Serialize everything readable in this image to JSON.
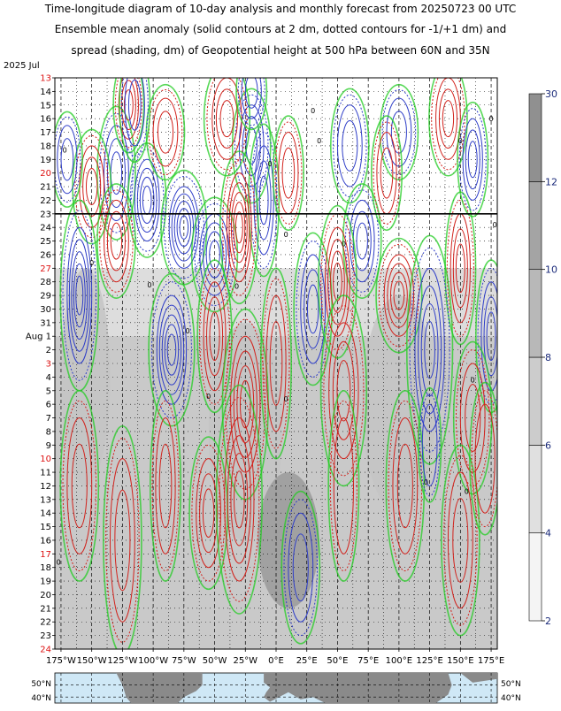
{
  "title_lines": [
    "Time-longitude diagram of 10-day analysis and monthly forecast from 20250723 00 UTC",
    "Ensemble mean anomaly (solid contours at 2 dm, dotted contours for -1/+1 dm) and",
    "spread (shading, dm) of Geopotential height at 500 hPa between 60N and 35N"
  ],
  "colors": {
    "positive": "#d2231d",
    "negative": "#2f3ec8",
    "zero": "#22cc22",
    "weekend_label": "#dd1111",
    "spread_light": "#dddddd",
    "spread_mid": "#c4c4c4",
    "spread_dark": "#9a9a9a",
    "ocean": "#cfe8f6",
    "land": "#8a8a8a",
    "analysis_line": "#000000"
  },
  "chart_data": {
    "type": "heatmap",
    "year_month_label": "2025 Jul",
    "analysis_date_label": "23",
    "y_ticks": [
      {
        "label": "13",
        "red": true
      },
      {
        "label": "14",
        "red": false
      },
      {
        "label": "15",
        "red": false
      },
      {
        "label": "16",
        "red": false
      },
      {
        "label": "17",
        "red": false
      },
      {
        "label": "18",
        "red": false
      },
      {
        "label": "19",
        "red": false
      },
      {
        "label": "20",
        "red": true
      },
      {
        "label": "21",
        "red": false
      },
      {
        "label": "22",
        "red": false
      },
      {
        "label": "23",
        "red": false
      },
      {
        "label": "24",
        "red": false
      },
      {
        "label": "25",
        "red": false
      },
      {
        "label": "26",
        "red": false
      },
      {
        "label": "27",
        "red": true
      },
      {
        "label": "28",
        "red": false
      },
      {
        "label": "29",
        "red": false
      },
      {
        "label": "30",
        "red": false
      },
      {
        "label": "31",
        "red": false
      },
      {
        "label": "Aug  1",
        "red": false
      },
      {
        "label": "2",
        "red": false
      },
      {
        "label": "3",
        "red": true
      },
      {
        "label": "4",
        "red": false
      },
      {
        "label": "5",
        "red": false
      },
      {
        "label": "6",
        "red": false
      },
      {
        "label": "7",
        "red": false
      },
      {
        "label": "8",
        "red": false
      },
      {
        "label": "9",
        "red": false
      },
      {
        "label": "10",
        "red": true
      },
      {
        "label": "11",
        "red": false
      },
      {
        "label": "12",
        "red": false
      },
      {
        "label": "13",
        "red": false
      },
      {
        "label": "14",
        "red": false
      },
      {
        "label": "15",
        "red": false
      },
      {
        "label": "16",
        "red": false
      },
      {
        "label": "17",
        "red": true
      },
      {
        "label": "18",
        "red": false
      },
      {
        "label": "19",
        "red": false
      },
      {
        "label": "20",
        "red": false
      },
      {
        "label": "21",
        "red": false
      },
      {
        "label": "22",
        "red": false
      },
      {
        "label": "23",
        "red": false
      },
      {
        "label": "24",
        "red": true
      }
    ],
    "x_ticks": [
      "175°W",
      "150°W",
      "125°W",
      "100°W",
      "75°W",
      "50°W",
      "25°W",
      "0°E",
      "25°E",
      "50°E",
      "75°E",
      "100°E",
      "125°E",
      "150°E",
      "175°E"
    ],
    "x_ticks_lon": [
      -175,
      -150,
      -125,
      -100,
      -75,
      -50,
      -25,
      0,
      25,
      50,
      75,
      100,
      125,
      150,
      175
    ],
    "xlim": [
      -180,
      180
    ],
    "colorbar": {
      "ticks": [
        2,
        4,
        6,
        8,
        10,
        12,
        30
      ]
    },
    "contour_features": [
      {
        "lon": -130,
        "day": -3,
        "rx": 10,
        "ry": 3.5,
        "sign": -1,
        "levels": 3
      },
      {
        "lon": -105,
        "day": -1,
        "rx": 10,
        "ry": 3,
        "sign": -1,
        "levels": 4
      },
      {
        "lon": -75,
        "day": 1,
        "rx": 12,
        "ry": 3,
        "sign": -1,
        "levels": 5
      },
      {
        "lon": -50,
        "day": 3,
        "rx": 12,
        "ry": 3,
        "sign": -1,
        "levels": 4
      },
      {
        "lon": -20,
        "day": -5,
        "rx": 10,
        "ry": 3,
        "sign": -1,
        "levels": 3
      },
      {
        "lon": -10,
        "day": -1,
        "rx": 8,
        "ry": 4,
        "sign": -1,
        "levels": 3
      },
      {
        "lon": -150,
        "day": -2,
        "rx": 10,
        "ry": 3,
        "sign": 1,
        "levels": 3
      },
      {
        "lon": -30,
        "day": 1,
        "rx": 10,
        "ry": 4,
        "sign": 1,
        "levels": 5
      },
      {
        "lon": -40,
        "day": -7,
        "rx": 12,
        "ry": 3,
        "sign": 1,
        "levels": 3
      },
      {
        "lon": -120,
        "day": -8,
        "rx": 8,
        "ry": 2.5,
        "sign": 1,
        "levels": 3
      },
      {
        "lon": -90,
        "day": -6,
        "rx": 10,
        "ry": 2.5,
        "sign": 1,
        "levels": 2
      },
      {
        "lon": -115,
        "day": -8,
        "rx": 8,
        "ry": 3,
        "sign": -1,
        "levels": 2
      },
      {
        "lon": -170,
        "day": -4,
        "rx": 8,
        "ry": 2.5,
        "sign": -1,
        "levels": 2
      },
      {
        "lon": -160,
        "day": 6,
        "rx": 10,
        "ry": 5,
        "sign": -1,
        "levels": 5
      },
      {
        "lon": -130,
        "day": 2,
        "rx": 10,
        "ry": 3,
        "sign": 1,
        "levels": 3
      },
      {
        "lon": -85,
        "day": 10,
        "rx": 12,
        "ry": 4,
        "sign": -1,
        "levels": 5
      },
      {
        "lon": -50,
        "day": 9,
        "rx": 9,
        "ry": 4,
        "sign": 1,
        "levels": 3
      },
      {
        "lon": -25,
        "day": 14,
        "rx": 12,
        "ry": 5,
        "sign": 1,
        "levels": 4
      },
      {
        "lon": 0,
        "day": 11,
        "rx": 8,
        "ry": 5,
        "sign": 1,
        "levels": 2
      },
      {
        "lon": 30,
        "day": 7,
        "rx": 10,
        "ry": 4,
        "sign": -1,
        "levels": 3
      },
      {
        "lon": 10,
        "day": -3,
        "rx": 8,
        "ry": 3,
        "sign": 1,
        "levels": 2
      },
      {
        "lon": 60,
        "day": -5,
        "rx": 10,
        "ry": 3,
        "sign": -1,
        "levels": 2
      },
      {
        "lon": 70,
        "day": 2,
        "rx": 10,
        "ry": 3,
        "sign": -1,
        "levels": 3
      },
      {
        "lon": 50,
        "day": 5,
        "rx": 10,
        "ry": 4,
        "sign": 1,
        "levels": 4
      },
      {
        "lon": 100,
        "day": 6,
        "rx": 12,
        "ry": 3,
        "sign": 1,
        "levels": 4
      },
      {
        "lon": 100,
        "day": -6,
        "rx": 10,
        "ry": 2.5,
        "sign": -1,
        "levels": 2
      },
      {
        "lon": 90,
        "day": -3,
        "rx": 8,
        "ry": 3,
        "sign": 1,
        "levels": 2
      },
      {
        "lon": 140,
        "day": -7,
        "rx": 10,
        "ry": 3,
        "sign": 1,
        "levels": 3
      },
      {
        "lon": 150,
        "day": 4,
        "rx": 8,
        "ry": 4,
        "sign": 1,
        "levels": 3
      },
      {
        "lon": 125,
        "day": 10,
        "rx": 12,
        "ry": 6,
        "sign": -1,
        "levels": 4
      },
      {
        "lon": 160,
        "day": -4,
        "rx": 8,
        "ry": 3,
        "sign": -1,
        "levels": 3
      },
      {
        "lon": 175,
        "day": 9,
        "rx": 8,
        "ry": 4,
        "sign": -1,
        "levels": 3
      },
      {
        "lon": 160,
        "day": 15,
        "rx": 10,
        "ry": 4,
        "sign": 1,
        "levels": 2
      },
      {
        "lon": 55,
        "day": 13,
        "rx": 12,
        "ry": 5,
        "sign": 1,
        "levels": 3
      },
      {
        "lon": -20,
        "day": -9,
        "rx": 8,
        "ry": 2,
        "sign": -1,
        "levels": 2
      },
      {
        "lon": -125,
        "day": 24,
        "rx": 10,
        "ry": 6,
        "sign": 1,
        "levels": 2
      },
      {
        "lon": -160,
        "day": 20,
        "rx": 10,
        "ry": 5,
        "sign": 1,
        "levels": 2
      },
      {
        "lon": -90,
        "day": 20,
        "rx": 8,
        "ry": 5,
        "sign": 1,
        "levels": 2
      },
      {
        "lon": -55,
        "day": 22,
        "rx": 10,
        "ry": 4,
        "sign": 1,
        "levels": 3
      },
      {
        "lon": -30,
        "day": 21,
        "rx": 12,
        "ry": 6,
        "sign": 1,
        "levels": 4
      },
      {
        "lon": 20,
        "day": 26,
        "rx": 10,
        "ry": 4,
        "sign": -1,
        "levels": 2
      },
      {
        "lon": 55,
        "day": 20,
        "rx": 8,
        "ry": 5,
        "sign": 1,
        "levels": 1
      },
      {
        "lon": 105,
        "day": 20,
        "rx": 10,
        "ry": 5,
        "sign": 1,
        "levels": 2
      },
      {
        "lon": 150,
        "day": 24,
        "rx": 10,
        "ry": 5,
        "sign": 1,
        "levels": 2
      },
      {
        "lon": 170,
        "day": 18,
        "rx": 8,
        "ry": 4,
        "sign": 1,
        "levels": 1
      },
      {
        "lon": 125,
        "day": 17,
        "rx": 6,
        "ry": 3,
        "sign": -1,
        "levels": 1
      }
    ],
    "spread_regions": [
      {
        "lon": -155,
        "day": 12,
        "rx": 20,
        "ry": 8,
        "level": "mid"
      },
      {
        "lon": -25,
        "day": 16,
        "rx": 30,
        "ry": 8,
        "level": "mid"
      },
      {
        "lon": 100,
        "day": 14,
        "rx": 30,
        "ry": 8,
        "level": "mid"
      },
      {
        "lon": 10,
        "day": 24,
        "rx": 25,
        "ry": 5,
        "level": "dark"
      }
    ],
    "zero_labels": [
      {
        "lon": -122,
        "day": -10.8,
        "text": "0"
      },
      {
        "lon": -172,
        "day": -4.7,
        "text": "0"
      },
      {
        "lon": -182,
        "day": -2.6,
        "text": "0"
      },
      {
        "lon": -150,
        "day": 3.6,
        "text": "0"
      },
      {
        "lon": -103,
        "day": 5.2,
        "text": "0"
      },
      {
        "lon": -72,
        "day": 8.6,
        "text": "0"
      },
      {
        "lon": -55,
        "day": 13.4,
        "text": "0"
      },
      {
        "lon": -32,
        "day": 5.3,
        "text": "0"
      },
      {
        "lon": -5,
        "day": -3.7,
        "text": "0"
      },
      {
        "lon": 8,
        "day": 1.5,
        "text": "0"
      },
      {
        "lon": 8,
        "day": 13.6,
        "text": "0"
      },
      {
        "lon": 30,
        "day": -7.6,
        "text": "0"
      },
      {
        "lon": 35,
        "day": -5.4,
        "text": "0"
      },
      {
        "lon": 55,
        "day": 2.2,
        "text": "0"
      },
      {
        "lon": 150,
        "day": -5.4,
        "text": "0"
      },
      {
        "lon": 160,
        "day": 12.2,
        "text": "0"
      },
      {
        "lon": 155,
        "day": 20.4,
        "text": "0"
      },
      {
        "lon": 175,
        "day": -7,
        "text": "0"
      },
      {
        "lon": 178,
        "day": 0.8,
        "text": "0"
      },
      {
        "lon": 122,
        "day": 19.7,
        "text": "0"
      },
      {
        "lon": -177,
        "day": 25.6,
        "text": "0"
      }
    ]
  },
  "map": {
    "lat_labels": [
      "50°N",
      "40°N"
    ]
  }
}
